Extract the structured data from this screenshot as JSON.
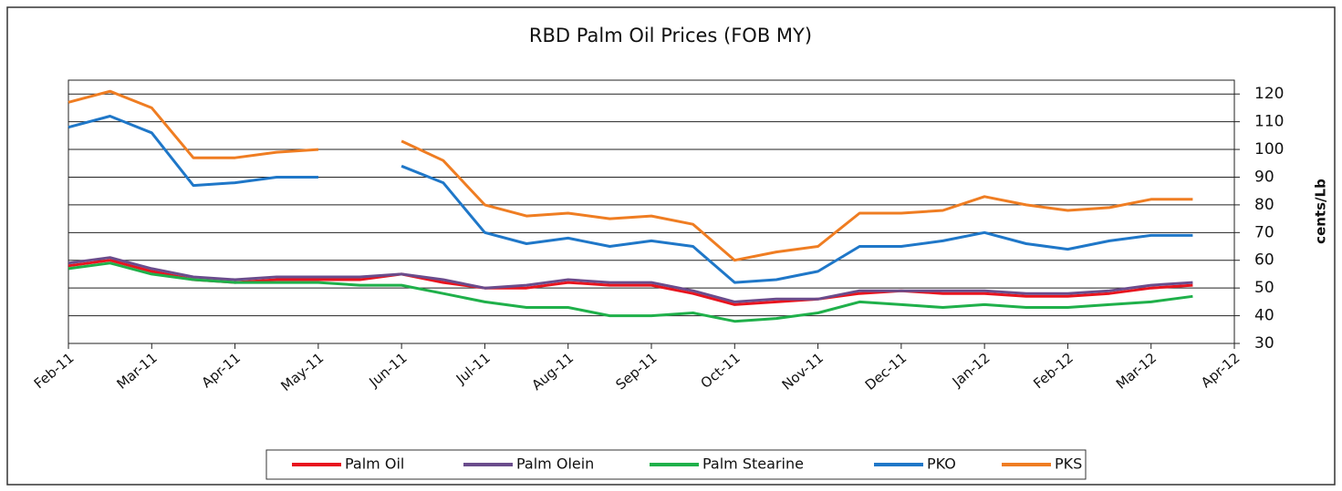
{
  "chart_data": {
    "type": "line",
    "title": "RBD Palm Oil Prices (FOB MY)",
    "y_label": "cents/Lb",
    "x": [
      0,
      0.5,
      1,
      1.5,
      2,
      2.5,
      3,
      3.5,
      4,
      4.5,
      5,
      5.5,
      6,
      6.5,
      7,
      7.5,
      8,
      8.5,
      9,
      9.5,
      10,
      10.5,
      11,
      11.5,
      12,
      12.5,
      13,
      13.5
    ],
    "xlim": [
      0,
      14
    ],
    "xticks": [
      {
        "value": 0,
        "label": "Feb-11"
      },
      {
        "value": 1,
        "label": "Mar-11"
      },
      {
        "value": 2,
        "label": "Apr-11"
      },
      {
        "value": 3,
        "label": "May-11"
      },
      {
        "value": 4,
        "label": "Jun-11"
      },
      {
        "value": 5,
        "label": "Jul-11"
      },
      {
        "value": 6,
        "label": "Aug-11"
      },
      {
        "value": 7,
        "label": "Sep-11"
      },
      {
        "value": 8,
        "label": "Oct-11"
      },
      {
        "value": 9,
        "label": "Nov-11"
      },
      {
        "value": 10,
        "label": "Dec-11"
      },
      {
        "value": 11,
        "label": "Jan-12"
      },
      {
        "value": 12,
        "label": "Feb-12"
      },
      {
        "value": 13,
        "label": "Mar-12"
      },
      {
        "value": 14,
        "label": "Apr-12"
      }
    ],
    "ylim": [
      30,
      125
    ],
    "yticks": [
      30,
      40,
      50,
      60,
      70,
      80,
      90,
      100,
      110,
      120
    ],
    "grid": true,
    "y_axis_side": "right",
    "legend": "bottom",
    "series": [
      {
        "name": "Palm Oil",
        "color": "#e8141e",
        "values": [
          58,
          60,
          56,
          53,
          52,
          53,
          53,
          53,
          55,
          52,
          50,
          50,
          52,
          51,
          51,
          48,
          44,
          45,
          46,
          48,
          49,
          48,
          48,
          47,
          47,
          48,
          50,
          51
        ]
      },
      {
        "name": "Palm Olein",
        "color": "#6a4c8c",
        "values": [
          59,
          61,
          57,
          54,
          53,
          54,
          54,
          54,
          55,
          53,
          50,
          51,
          53,
          52,
          52,
          49,
          45,
          46,
          46,
          49,
          49,
          49,
          49,
          48,
          48,
          49,
          51,
          52
        ]
      },
      {
        "name": "Palm Stearine",
        "color": "#1fb04a",
        "values": [
          57,
          59,
          55,
          53,
          52,
          52,
          52,
          51,
          51,
          48,
          45,
          43,
          43,
          40,
          40,
          41,
          38,
          39,
          41,
          45,
          44,
          43,
          44,
          43,
          43,
          44,
          45,
          47
        ]
      },
      {
        "name": "PKO",
        "color": "#1f77c8",
        "values": [
          108,
          112,
          106,
          87,
          88,
          90,
          90,
          null,
          94,
          88,
          70,
          66,
          68,
          65,
          67,
          65,
          52,
          53,
          56,
          65,
          65,
          67,
          70,
          66,
          64,
          67,
          69,
          69
        ]
      },
      {
        "name": "PKS",
        "color": "#ef7d22",
        "values": [
          117,
          121,
          115,
          97,
          97,
          99,
          100,
          null,
          103,
          96,
          80,
          76,
          77,
          75,
          76,
          73,
          60,
          63,
          65,
          77,
          77,
          78,
          83,
          80,
          78,
          79,
          82,
          82
        ]
      }
    ]
  }
}
